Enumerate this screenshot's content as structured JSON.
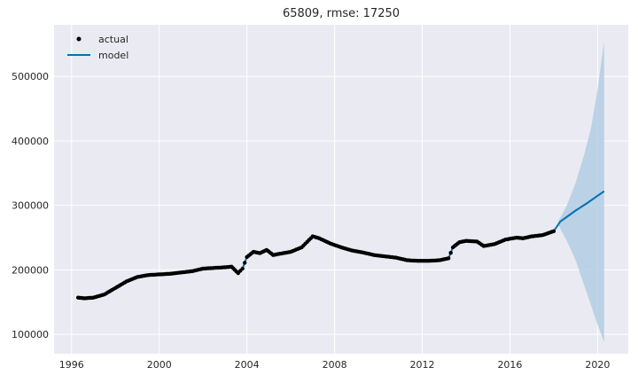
{
  "chart_data": {
    "type": "line",
    "title": "65809, rmse: 17250",
    "xlabel": "",
    "ylabel": "",
    "xlim": [
      1995.2,
      2021.4
    ],
    "ylim": [
      70000,
      580000
    ],
    "x_ticks": [
      1996,
      2000,
      2004,
      2008,
      2012,
      2016,
      2020
    ],
    "x_tick_labels": [
      "1996",
      "2000",
      "2004",
      "2008",
      "2012",
      "2016",
      "2020"
    ],
    "y_ticks": [
      100000,
      200000,
      300000,
      400000,
      500000
    ],
    "y_tick_labels": [
      "100000",
      "200000",
      "300000",
      "400000",
      "500000"
    ],
    "grid": true,
    "legend": {
      "placement": "top-left",
      "entries": [
        "actual",
        "model"
      ]
    },
    "colors": {
      "plot_bg": "#eaeaf2",
      "grid": "#ffffff",
      "actual": "#000000",
      "model": "#0072b2",
      "band": "#b3cde3"
    },
    "series": [
      {
        "name": "actual",
        "style": "points",
        "x": [
          1996.3,
          1996.6,
          1997.0,
          1997.5,
          1998.0,
          1998.5,
          1999.0,
          1999.5,
          2000.0,
          2000.5,
          2001.0,
          2001.5,
          2002.0,
          2002.5,
          2003.0,
          2003.3,
          2003.6,
          2003.8,
          2004.0,
          2004.3,
          2004.6,
          2004.9,
          2005.2,
          2005.5,
          2006.0,
          2006.5,
          2007.0,
          2007.3,
          2007.8,
          2008.3,
          2008.8,
          2009.3,
          2009.8,
          2010.3,
          2010.8,
          2011.3,
          2011.8,
          2012.3,
          2012.8,
          2013.2,
          2013.4,
          2013.7,
          2014.0,
          2014.5,
          2014.8,
          2015.3,
          2015.8,
          2016.3,
          2016.6,
          2017.0,
          2017.5,
          2018.0
        ],
        "y": [
          157000,
          156000,
          157000,
          162000,
          172000,
          182000,
          189000,
          192000,
          193000,
          194000,
          196000,
          198000,
          202000,
          203000,
          204000,
          205000,
          195000,
          202000,
          220000,
          228000,
          226000,
          231000,
          223000,
          225000,
          228000,
          235000,
          252000,
          249000,
          241000,
          235000,
          230000,
          227000,
          223000,
          221000,
          219000,
          215000,
          214000,
          214000,
          215000,
          218000,
          235000,
          243000,
          245000,
          244000,
          237000,
          240000,
          247000,
          250000,
          249000,
          252000,
          254000,
          260000
        ]
      },
      {
        "name": "model",
        "style": "line",
        "x": [
          1996.3,
          1996.6,
          1997.0,
          1997.5,
          1998.0,
          1998.5,
          1999.0,
          1999.5,
          2000.0,
          2000.5,
          2001.0,
          2001.5,
          2002.0,
          2002.5,
          2003.0,
          2003.3,
          2003.6,
          2003.8,
          2004.0,
          2004.3,
          2004.6,
          2004.9,
          2005.2,
          2005.5,
          2006.0,
          2006.5,
          2007.0,
          2007.3,
          2007.8,
          2008.3,
          2008.8,
          2009.3,
          2009.8,
          2010.3,
          2010.8,
          2011.3,
          2011.8,
          2012.3,
          2012.8,
          2013.2,
          2013.4,
          2013.7,
          2014.0,
          2014.5,
          2014.8,
          2015.3,
          2015.8,
          2016.3,
          2016.6,
          2017.0,
          2017.5,
          2018.0,
          2018.3,
          2019.0,
          2019.5,
          2020.3
        ],
        "y": [
          157000,
          156000,
          157000,
          162000,
          172000,
          182000,
          189000,
          192000,
          193000,
          194000,
          196000,
          198000,
          202000,
          203000,
          204000,
          205000,
          195000,
          202000,
          220000,
          228000,
          226000,
          231000,
          223000,
          225000,
          228000,
          235000,
          252000,
          249000,
          241000,
          235000,
          230000,
          227000,
          223000,
          221000,
          219000,
          215000,
          214000,
          214000,
          215000,
          218000,
          235000,
          243000,
          245000,
          244000,
          237000,
          240000,
          247000,
          250000,
          249000,
          252000,
          254000,
          260000,
          275000,
          292000,
          303000,
          322000
        ]
      }
    ],
    "forecast_band": {
      "x": [
        2018.2,
        2018.6,
        2019.0,
        2019.4,
        2019.7,
        2020.0,
        2020.3
      ],
      "upper": [
        275000,
        300000,
        335000,
        380000,
        420000,
        480000,
        555000
      ],
      "lower": [
        270000,
        245000,
        215000,
        175000,
        145000,
        115000,
        88000
      ]
    }
  }
}
